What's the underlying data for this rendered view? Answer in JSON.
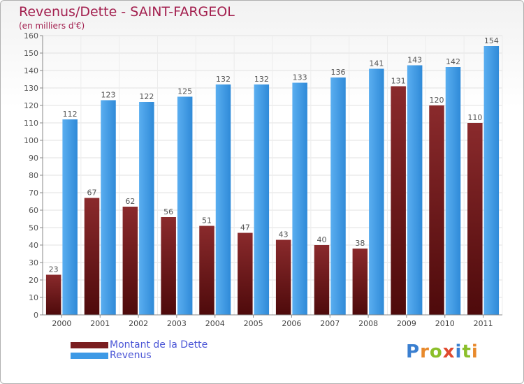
{
  "header": {
    "title": "Revenus/Dette - SAINT-FARGEOL",
    "subtitle": "(en milliers d'€)"
  },
  "colors": {
    "dette": "#7a1e20",
    "revenus": "#3d9ae6",
    "title": "#a3204f",
    "legend_text": "#4a55d6"
  },
  "chart_data": {
    "type": "bar",
    "title": "Revenus/Dette - SAINT-FARGEOL",
    "subtitle": "(en milliers d'€)",
    "categories": [
      "2000",
      "2001",
      "2002",
      "2003",
      "2004",
      "2005",
      "2006",
      "2007",
      "2008",
      "2009",
      "2010",
      "2011"
    ],
    "series": [
      {
        "name": "Montant de la Dette",
        "values": [
          23,
          67,
          62,
          56,
          51,
          47,
          43,
          40,
          38,
          131,
          120,
          110
        ]
      },
      {
        "name": "Revenus",
        "values": [
          112,
          123,
          122,
          125,
          132,
          132,
          133,
          136,
          141,
          143,
          142,
          154
        ]
      }
    ],
    "ylim": [
      0,
      160
    ],
    "yticks": [
      0,
      10,
      20,
      30,
      40,
      50,
      60,
      70,
      80,
      90,
      100,
      110,
      120,
      130,
      140,
      150,
      160
    ],
    "grid": true,
    "legend_position": "bottom-left"
  },
  "legend": {
    "items": [
      {
        "label": "Montant de la Dette"
      },
      {
        "label": "Revenus"
      }
    ]
  },
  "logo": {
    "text": "Proxiti"
  }
}
